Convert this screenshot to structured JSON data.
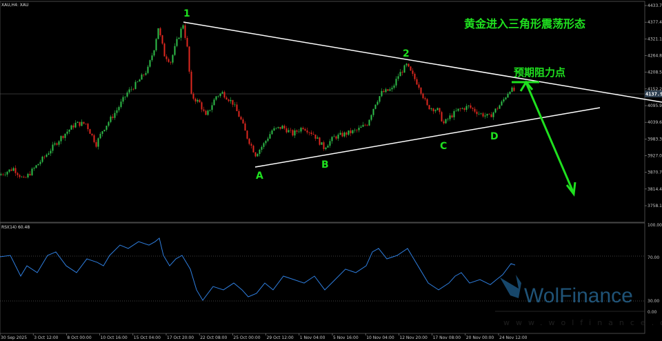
{
  "header": {
    "symbol_label": "XAU,H4: XAU"
  },
  "rsi_header": {
    "label": "RSI(14) 60.48"
  },
  "current_price": "4137.90",
  "colors": {
    "up": "#2fbf4a",
    "down": "#e0281f",
    "rsi": "#2f7fe0",
    "annotation": "#1fe01f",
    "trendline": "#ffffff"
  },
  "annotations": {
    "title": "黄金进入三角形震荡形态",
    "resistance": "预期阻力点",
    "points": [
      "1",
      "2",
      "A",
      "B",
      "C",
      "D"
    ]
  },
  "watermark": {
    "brand": "WolFinance",
    "url": "www.wolfinance.com"
  },
  "chart_data": [
    {
      "type": "candlestick",
      "title": "XAU,H4: XAU",
      "y_ticks": [
        "4433.70",
        "4377.40",
        "4321.10",
        "4264.80",
        "4208.50",
        "4152.20",
        "4095.90",
        "4039.60",
        "3983.30",
        "3927.00",
        "3870.70",
        "3814.40",
        "3758.10"
      ],
      "ylim": [
        3758.1,
        4433.7
      ],
      "x_ticks": [
        "30 Sep 2025",
        "3 Oct 12:00",
        "8 Oct 00:00",
        "10 Oct 16:00",
        "15 Oct 04:00",
        "17 Oct 20:00",
        "22 Oct 08:00",
        "25 Oct 00:00",
        "29 Oct 12:00",
        "1 Nov 04:00",
        "5 Nov 16:00",
        "10 Nov 04:00",
        "12 Nov 20:00",
        "17 Nov 08:00",
        "20 Nov 00:00",
        "24 Nov 12:00"
      ],
      "close_path_bar_price": [
        [
          0,
          3861
        ],
        [
          7,
          3884
        ],
        [
          12,
          3845
        ],
        [
          17,
          3884
        ],
        [
          23,
          3931
        ],
        [
          30,
          3989
        ],
        [
          37,
          4035
        ],
        [
          42,
          4035
        ],
        [
          47,
          3966
        ],
        [
          50,
          4012
        ],
        [
          57,
          4081
        ],
        [
          62,
          4139
        ],
        [
          67,
          4174
        ],
        [
          72,
          4220
        ],
        [
          75,
          4290
        ],
        [
          77,
          4360
        ],
        [
          80,
          4267
        ],
        [
          83,
          4244
        ],
        [
          86,
          4313
        ],
        [
          89,
          4371
        ],
        [
          91,
          4290
        ],
        [
          93,
          4128
        ],
        [
          97,
          4105
        ],
        [
          100,
          4058
        ],
        [
          105,
          4128
        ],
        [
          108,
          4139
        ],
        [
          113,
          4105
        ],
        [
          117,
          4047
        ],
        [
          120,
          3989
        ],
        [
          124,
          3931
        ],
        [
          128,
          3966
        ],
        [
          132,
          4012
        ],
        [
          137,
          4024
        ],
        [
          142,
          4000
        ],
        [
          147,
          4024
        ],
        [
          152,
          4000
        ],
        [
          157,
          3954
        ],
        [
          162,
          3989
        ],
        [
          167,
          4000
        ],
        [
          173,
          4012
        ],
        [
          178,
          4035
        ],
        [
          182,
          4105
        ],
        [
          185,
          4139
        ],
        [
          190,
          4151
        ],
        [
          193,
          4197
        ],
        [
          197,
          4232
        ],
        [
          200,
          4197
        ],
        [
          203,
          4163
        ],
        [
          207,
          4093
        ],
        [
          212,
          4081
        ],
        [
          215,
          4035
        ],
        [
          218,
          4058
        ],
        [
          222,
          4081
        ],
        [
          227,
          4093
        ],
        [
          232,
          4070
        ],
        [
          237,
          4058
        ],
        [
          240,
          4081
        ],
        [
          243,
          4105
        ],
        [
          247,
          4151
        ],
        [
          249,
          4146
        ]
      ]
    },
    {
      "type": "line",
      "title": "RSI(14) 60.48",
      "y_ticks": [
        "100.00",
        "70.00",
        "30.00",
        "0.00"
      ],
      "ylim": [
        0,
        100
      ],
      "levels": [
        70,
        30
      ],
      "series": [
        {
          "values_bar_rsi": [
            [
              0,
              70.7
            ],
            [
              5,
              72
            ],
            [
              10,
              52.9
            ],
            [
              13,
              62.4
            ],
            [
              18,
              56.1
            ],
            [
              23,
              72
            ],
            [
              27,
              75.2
            ],
            [
              32,
              62.4
            ],
            [
              37,
              56.1
            ],
            [
              42,
              68.8
            ],
            [
              47,
              65.6
            ],
            [
              50,
              62.4
            ],
            [
              53,
              72
            ],
            [
              58,
              81.5
            ],
            [
              62,
              78.4
            ],
            [
              67,
              84.7
            ],
            [
              72,
              81.5
            ],
            [
              75,
              84.7
            ],
            [
              77,
              87.9
            ],
            [
              79,
              72
            ],
            [
              82,
              62.4
            ],
            [
              85,
              68.8
            ],
            [
              88,
              72
            ],
            [
              92,
              59.3
            ],
            [
              95,
              40.2
            ],
            [
              98,
              30.6
            ],
            [
              103,
              43.3
            ],
            [
              108,
              40.2
            ],
            [
              113,
              46.5
            ],
            [
              117,
              40.2
            ],
            [
              120,
              33.8
            ],
            [
              124,
              37
            ],
            [
              128,
              46.5
            ],
            [
              132,
              40.2
            ],
            [
              137,
              52.9
            ],
            [
              142,
              49.7
            ],
            [
              147,
              46.5
            ],
            [
              152,
              52.9
            ],
            [
              157,
              40.2
            ],
            [
              162,
              49.7
            ],
            [
              167,
              59.3
            ],
            [
              172,
              56.1
            ],
            [
              177,
              62.4
            ],
            [
              180,
              75.2
            ],
            [
              183,
              78.4
            ],
            [
              187,
              68.8
            ],
            [
              192,
              72
            ],
            [
              197,
              78.4
            ],
            [
              200,
              68.8
            ],
            [
              203,
              59.3
            ],
            [
              207,
              46.5
            ],
            [
              212,
              40.2
            ],
            [
              217,
              46.5
            ],
            [
              220,
              52.9
            ],
            [
              223,
              56.1
            ],
            [
              227,
              46.5
            ],
            [
              232,
              49.7
            ],
            [
              237,
              45
            ],
            [
              240,
              49.7
            ],
            [
              243,
              54.2
            ],
            [
              247,
              64.4
            ],
            [
              249,
              63.1
            ]
          ]
        }
      ]
    }
  ]
}
